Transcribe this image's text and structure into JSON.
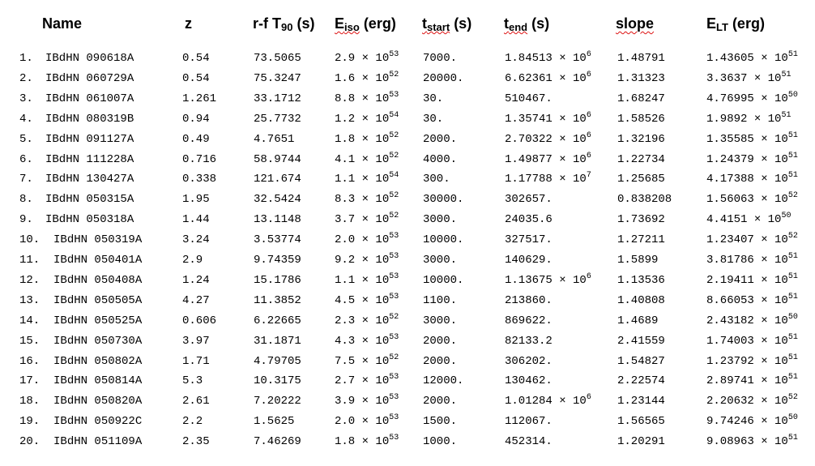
{
  "headers": {
    "name": "Name",
    "z": "z",
    "t90_prefix": "r-f T",
    "t90_sub": "90",
    "t90_suffix": " (s)",
    "eiso_main": "E",
    "eiso_sub": "iso",
    "eiso_suffix": " (erg)",
    "tstart_main": "t",
    "tstart_sub": "start",
    "tstart_suffix": " (s)",
    "tend_main": "t",
    "tend_sub": "end",
    "tend_suffix": " (s)",
    "slope": "slope",
    "elt_main": "E",
    "elt_sub": "LT",
    "elt_suffix": " (erg)"
  },
  "rows": [
    {
      "idx": "1.",
      "name": "IBdHN 090618A",
      "z": "0.54",
      "t90": "73.5065",
      "eiso_m": "2.9",
      "eiso_e": "53",
      "tstart": "7000.",
      "tend_m": "1.84513",
      "tend_e": "6",
      "slope": "1.48791",
      "elt_m": "1.43605",
      "elt_e": "51"
    },
    {
      "idx": "2.",
      "name": "IBdHN 060729A",
      "z": "0.54",
      "t90": "75.3247",
      "eiso_m": "1.6",
      "eiso_e": "52",
      "tstart": "20000.",
      "tend_m": "6.62361",
      "tend_e": "6",
      "slope": "1.31323",
      "elt_m": "3.3637",
      "elt_e": "51"
    },
    {
      "idx": "3.",
      "name": "IBdHN 061007A",
      "z": "1.261",
      "t90": "33.1712",
      "eiso_m": "8.8",
      "eiso_e": "53",
      "tstart": "30.",
      "tend_m": "510467.",
      "tend_e": "",
      "slope": "1.68247",
      "elt_m": "4.76995",
      "elt_e": "50"
    },
    {
      "idx": "4.",
      "name": "IBdHN 080319B",
      "z": "0.94",
      "t90": "25.7732",
      "eiso_m": "1.2",
      "eiso_e": "54",
      "tstart": "30.",
      "tend_m": "1.35741",
      "tend_e": "6",
      "slope": "1.58526",
      "elt_m": "1.9892",
      "elt_e": "51"
    },
    {
      "idx": "5.",
      "name": "IBdHN 091127A",
      "z": "0.49",
      "t90": "4.7651",
      "eiso_m": "1.8",
      "eiso_e": "52",
      "tstart": "2000.",
      "tend_m": "2.70322",
      "tend_e": "6",
      "slope": "1.32196",
      "elt_m": "1.35585",
      "elt_e": "51"
    },
    {
      "idx": "6.",
      "name": "IBdHN 111228A",
      "z": "0.716",
      "t90": "58.9744",
      "eiso_m": "4.1",
      "eiso_e": "52",
      "tstart": "4000.",
      "tend_m": "1.49877",
      "tend_e": "6",
      "slope": "1.22734",
      "elt_m": "1.24379",
      "elt_e": "51"
    },
    {
      "idx": "7.",
      "name": "IBdHN 130427A",
      "z": "0.338",
      "t90": "121.674",
      "eiso_m": "1.1",
      "eiso_e": "54",
      "tstart": "300.",
      "tend_m": "1.17788",
      "tend_e": "7",
      "slope": "1.25685",
      "elt_m": "4.17388",
      "elt_e": "51"
    },
    {
      "idx": "8.",
      "name": "IBdHN 050315A",
      "z": "1.95",
      "t90": "32.5424",
      "eiso_m": "8.3",
      "eiso_e": "52",
      "tstart": "30000.",
      "tend_m": "302657.",
      "tend_e": "",
      "slope": "0.838208",
      "elt_m": "1.56063",
      "elt_e": "52"
    },
    {
      "idx": "9.",
      "name": "IBdHN 050318A",
      "z": "1.44",
      "t90": "13.1148",
      "eiso_m": "3.7",
      "eiso_e": "52",
      "tstart": "3000.",
      "tend_m": "24035.6",
      "tend_e": "",
      "slope": "1.73692",
      "elt_m": "4.4151",
      "elt_e": "50"
    },
    {
      "idx": "10.",
      "name": "IBdHN 050319A",
      "z": "3.24",
      "t90": "3.53774",
      "eiso_m": "2.0",
      "eiso_e": "53",
      "tstart": "10000.",
      "tend_m": "327517.",
      "tend_e": "",
      "slope": "1.27211",
      "elt_m": "1.23407",
      "elt_e": "52"
    },
    {
      "idx": "11.",
      "name": "IBdHN 050401A",
      "z": "2.9",
      "t90": "9.74359",
      "eiso_m": "9.2",
      "eiso_e": "53",
      "tstart": "3000.",
      "tend_m": "140629.",
      "tend_e": "",
      "slope": "1.5899",
      "elt_m": "3.81786",
      "elt_e": "51"
    },
    {
      "idx": "12.",
      "name": "IBdHN 050408A",
      "z": "1.24",
      "t90": "15.1786",
      "eiso_m": "1.1",
      "eiso_e": "53",
      "tstart": "10000.",
      "tend_m": "1.13675",
      "tend_e": "6",
      "slope": "1.13536",
      "elt_m": "2.19411",
      "elt_e": "51"
    },
    {
      "idx": "13.",
      "name": "IBdHN 050505A",
      "z": "4.27",
      "t90": "11.3852",
      "eiso_m": "4.5",
      "eiso_e": "53",
      "tstart": "1100.",
      "tend_m": "213860.",
      "tend_e": "",
      "slope": "1.40808",
      "elt_m": "8.66053",
      "elt_e": "51"
    },
    {
      "idx": "14.",
      "name": "IBdHN 050525A",
      "z": "0.606",
      "t90": "6.22665",
      "eiso_m": "2.3",
      "eiso_e": "52",
      "tstart": "3000.",
      "tend_m": "869622.",
      "tend_e": "",
      "slope": "1.4689",
      "elt_m": "2.43182",
      "elt_e": "50"
    },
    {
      "idx": "15.",
      "name": "IBdHN 050730A",
      "z": "3.97",
      "t90": "31.1871",
      "eiso_m": "4.3",
      "eiso_e": "53",
      "tstart": "2000.",
      "tend_m": "82133.2",
      "tend_e": "",
      "slope": "2.41559",
      "elt_m": "1.74003",
      "elt_e": "51"
    },
    {
      "idx": "16.",
      "name": "IBdHN 050802A",
      "z": "1.71",
      "t90": "4.79705",
      "eiso_m": "7.5",
      "eiso_e": "52",
      "tstart": "2000.",
      "tend_m": "306202.",
      "tend_e": "",
      "slope": "1.54827",
      "elt_m": "1.23792",
      "elt_e": "51"
    },
    {
      "idx": "17.",
      "name": "IBdHN 050814A",
      "z": "5.3",
      "t90": "10.3175",
      "eiso_m": "2.7",
      "eiso_e": "53",
      "tstart": "12000.",
      "tend_m": "130462.",
      "tend_e": "",
      "slope": "2.22574",
      "elt_m": "2.89741",
      "elt_e": "51"
    },
    {
      "idx": "18.",
      "name": "IBdHN 050820A",
      "z": "2.61",
      "t90": "7.20222",
      "eiso_m": "3.9",
      "eiso_e": "53",
      "tstart": "2000.",
      "tend_m": "1.01284",
      "tend_e": "6",
      "slope": "1.23144",
      "elt_m": "2.20632",
      "elt_e": "52"
    },
    {
      "idx": "19.",
      "name": "IBdHN 050922C",
      "z": "2.2",
      "t90": "1.5625",
      "eiso_m": "2.0",
      "eiso_e": "53",
      "tstart": "1500.",
      "tend_m": "112067.",
      "tend_e": "",
      "slope": "1.56565",
      "elt_m": "9.74246",
      "elt_e": "50"
    },
    {
      "idx": "20.",
      "name": "IBdHN 051109A",
      "z": "2.35",
      "t90": "7.46269",
      "eiso_m": "1.8",
      "eiso_e": "53",
      "tstart": "1000.",
      "tend_m": "452314.",
      "tend_e": "",
      "slope": "1.20291",
      "elt_m": "9.08963",
      "elt_e": "51"
    }
  ]
}
